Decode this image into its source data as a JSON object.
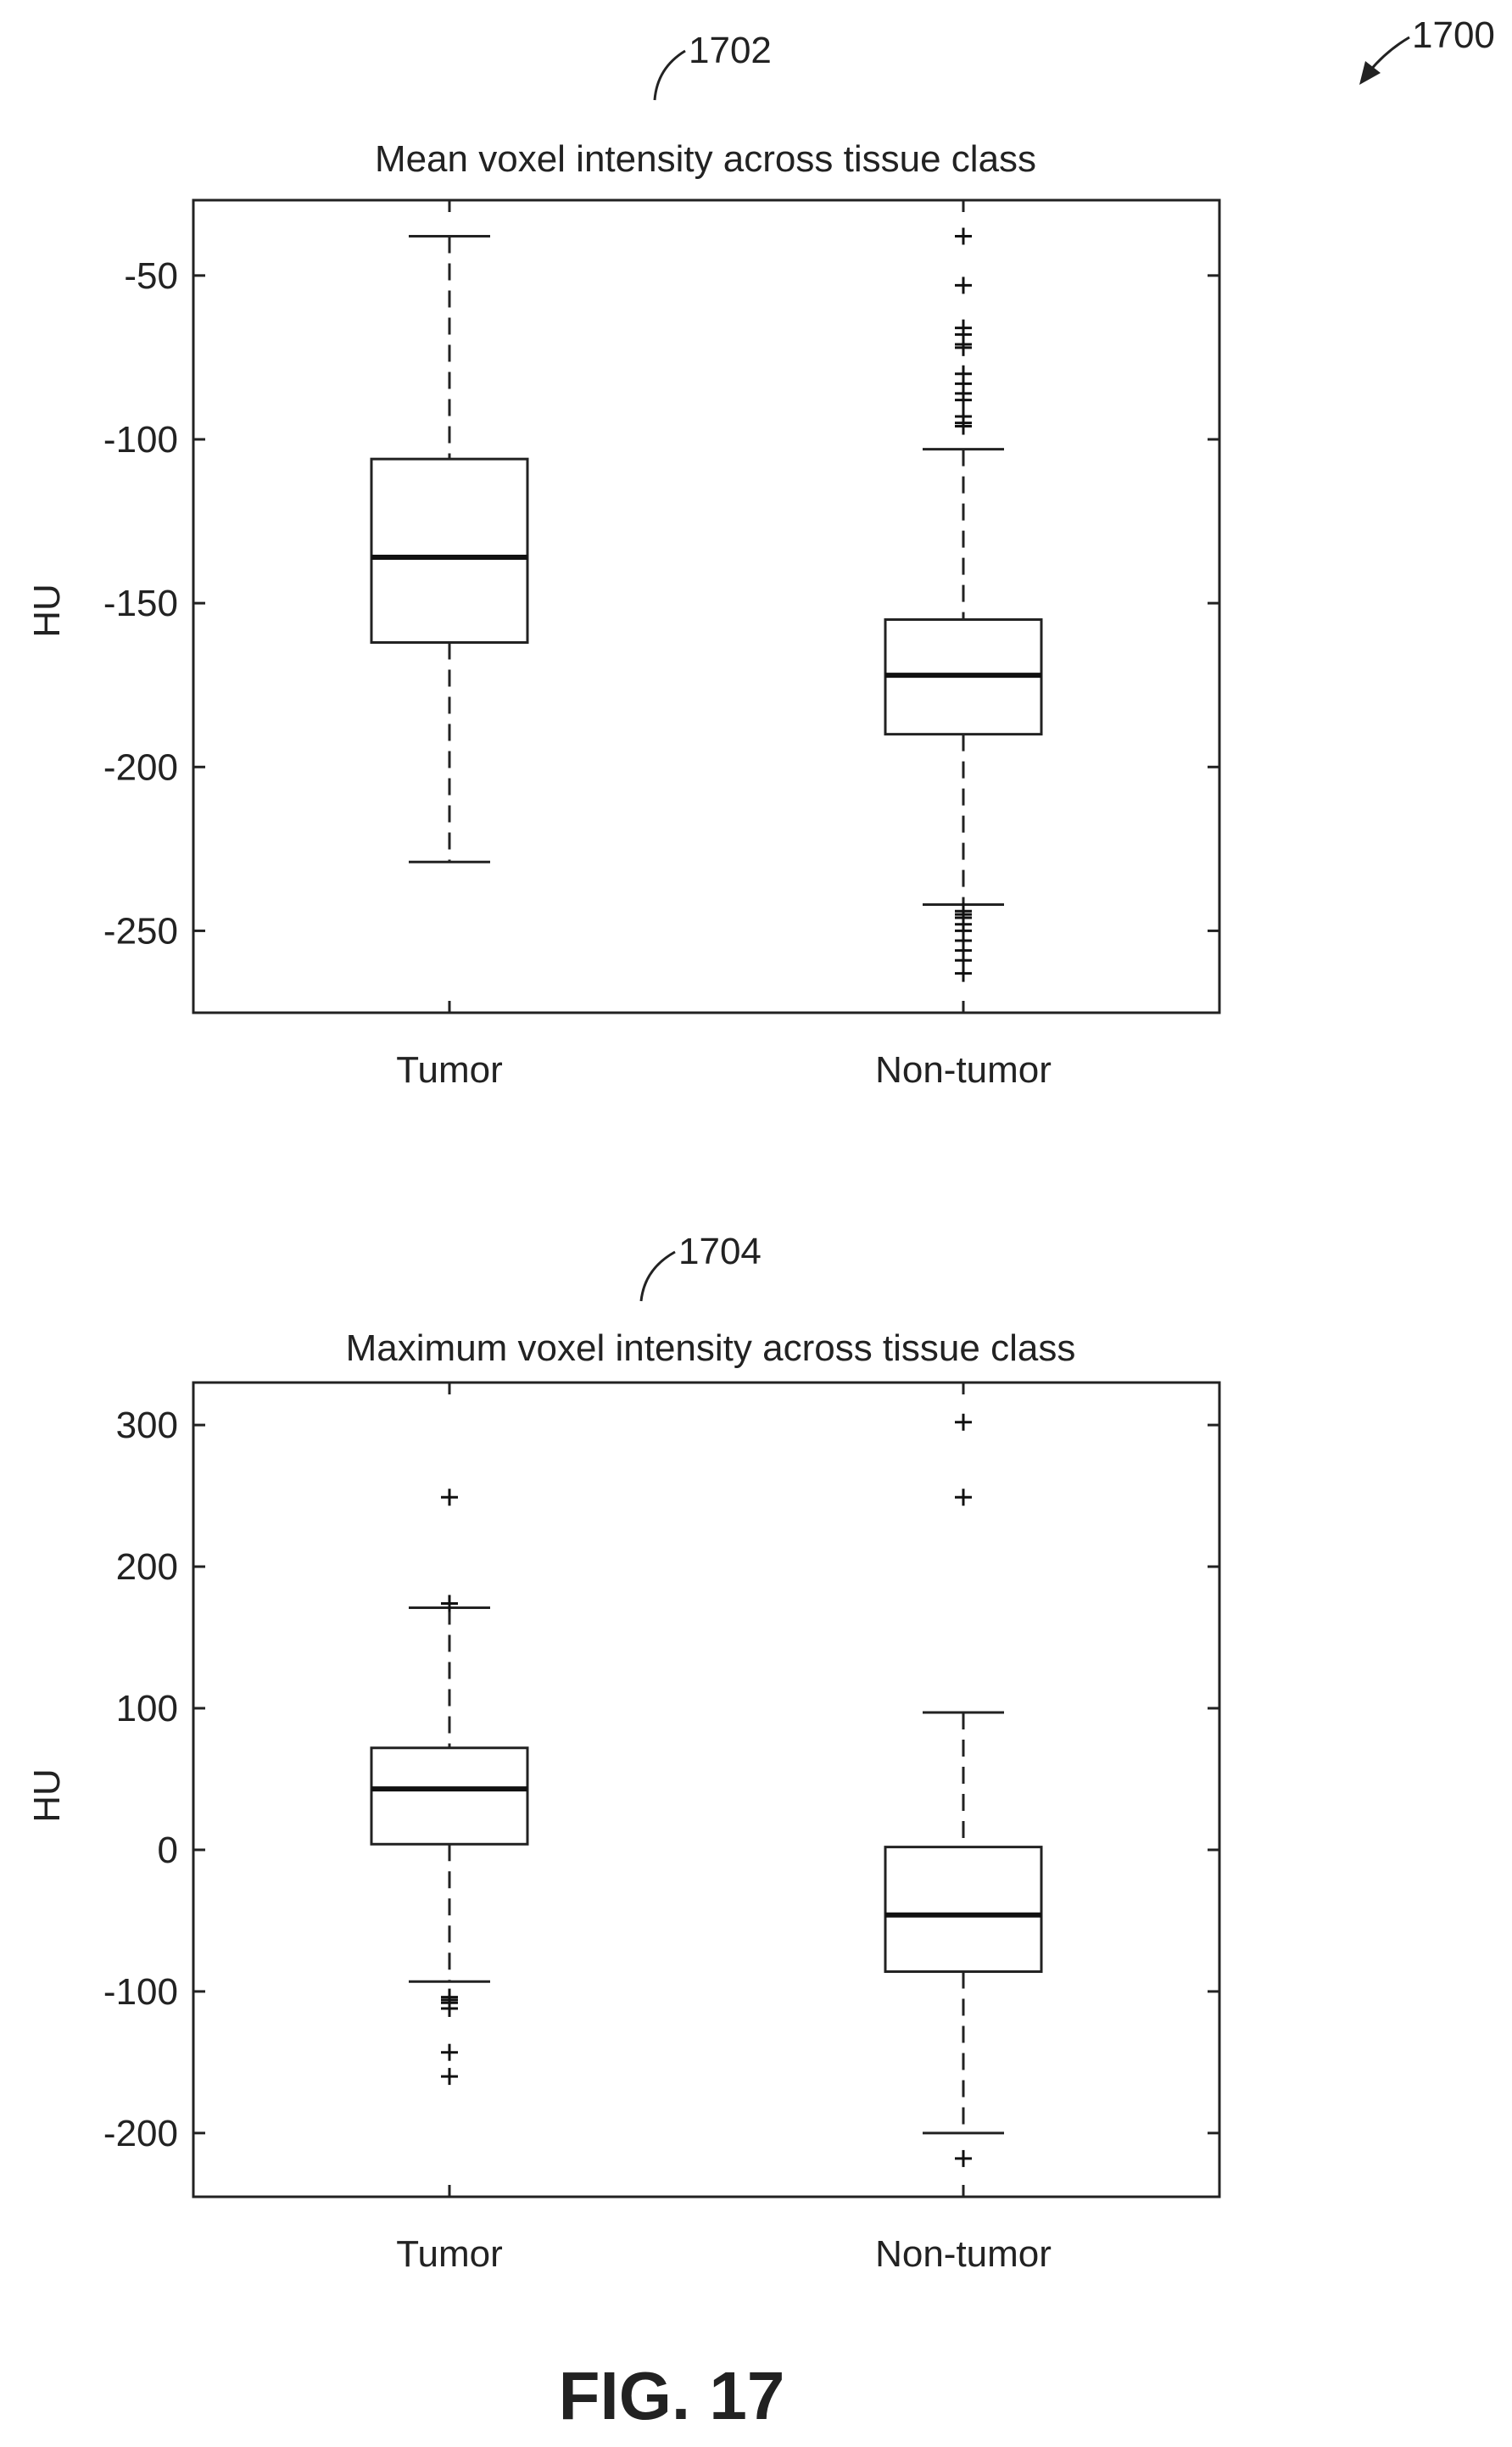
{
  "figure": {
    "ref_number": "1700",
    "caption": "FIG. 17"
  },
  "chart_data": [
    {
      "type": "box",
      "ref_number": "1702",
      "title": "Mean voxel intensity across tissue class",
      "xlabel": "",
      "ylabel": "HU",
      "ylim": [
        -275,
        -27
      ],
      "yticks": [
        -250,
        -200,
        -150,
        -100,
        -50
      ],
      "ytick_labels": [
        "-250",
        "-200",
        "-150",
        "-100",
        "-50"
      ],
      "categories": [
        "Tumor",
        "Non-tumor"
      ],
      "boxes": [
        {
          "category": "Tumor",
          "whisker_low": -229,
          "q1": -162,
          "median": -136,
          "q3": -106,
          "whisker_high": -38,
          "outliers": []
        },
        {
          "category": "Non-tumor",
          "whisker_low": -242,
          "q1": -190,
          "median": -172,
          "q3": -155,
          "whisker_high": -103,
          "outliers": [
            -38,
            -53,
            -66,
            -68,
            -71,
            -72,
            -80,
            -83,
            -86,
            -88,
            -93,
            -95,
            -96,
            -244,
            -245,
            -246,
            -248,
            -250,
            -253,
            -256,
            -259,
            -263
          ]
        }
      ]
    },
    {
      "type": "box",
      "ref_number": "1704",
      "title": "Maximum voxel intensity across tissue class",
      "xlabel": "",
      "ylabel": "HU",
      "ylim": [
        -245,
        330
      ],
      "yticks": [
        -200,
        -100,
        0,
        100,
        200,
        300
      ],
      "ytick_labels": [
        "-200",
        "-100",
        "0",
        "100",
        "200",
        "300"
      ],
      "categories": [
        "Tumor",
        "Non-tumor"
      ],
      "boxes": [
        {
          "category": "Tumor",
          "whisker_low": -93,
          "q1": 4,
          "median": 43,
          "q3": 72,
          "whisker_high": 171,
          "outliers": [
            249,
            174,
            -104,
            -106,
            -108,
            -112,
            -143,
            -160
          ]
        },
        {
          "category": "Non-tumor",
          "whisker_low": -200,
          "q1": -86,
          "median": -46,
          "q3": 2,
          "whisker_high": 97,
          "outliers": [
            302,
            249,
            -218
          ]
        }
      ]
    }
  ]
}
